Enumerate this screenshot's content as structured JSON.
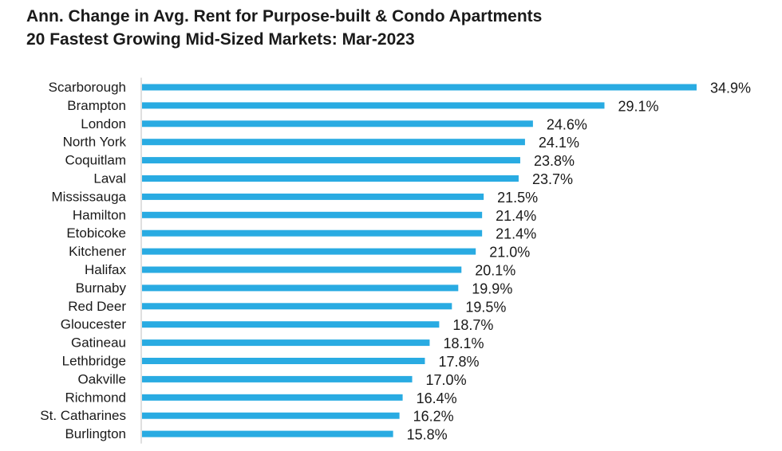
{
  "chart_data": {
    "type": "bar",
    "orientation": "horizontal",
    "title": "Ann. Change in Avg. Rent for Purpose-built & Condo Apartments",
    "subtitle": "20 Fastest Growing Mid-Sized Markets: Mar-2023",
    "xlabel": "",
    "ylabel": "",
    "grid": false,
    "categories": [
      "Scarborough",
      "Brampton",
      "London",
      "North York",
      "Coquitlam",
      "Laval",
      "Mississauga",
      "Hamilton",
      "Etobicoke",
      "Kitchener",
      "Halifax",
      "Burnaby",
      "Red Deer",
      "Gloucester",
      "Gatineau",
      "Lethbridge",
      "Oakville",
      "Richmond",
      "St. Catharines",
      "Burlington"
    ],
    "values": [
      34.9,
      29.1,
      24.6,
      24.1,
      23.8,
      23.7,
      21.5,
      21.4,
      21.4,
      21.0,
      20.1,
      19.9,
      19.5,
      18.7,
      18.1,
      17.8,
      17.0,
      16.4,
      16.2,
      15.8
    ],
    "labels": [
      "34.9%",
      "29.1%",
      "24.6%",
      "24.1%",
      "23.8%",
      "23.7%",
      "21.5%",
      "21.4%",
      "21.4%",
      "21.0%",
      "20.1%",
      "19.9%",
      "19.5%",
      "18.7%",
      "18.1%",
      "17.8%",
      "17.0%",
      "16.4%",
      "16.2%",
      "15.8%"
    ],
    "unit": "%",
    "bar_color": "#29abe2",
    "axis_color": "#bfbfbf"
  }
}
